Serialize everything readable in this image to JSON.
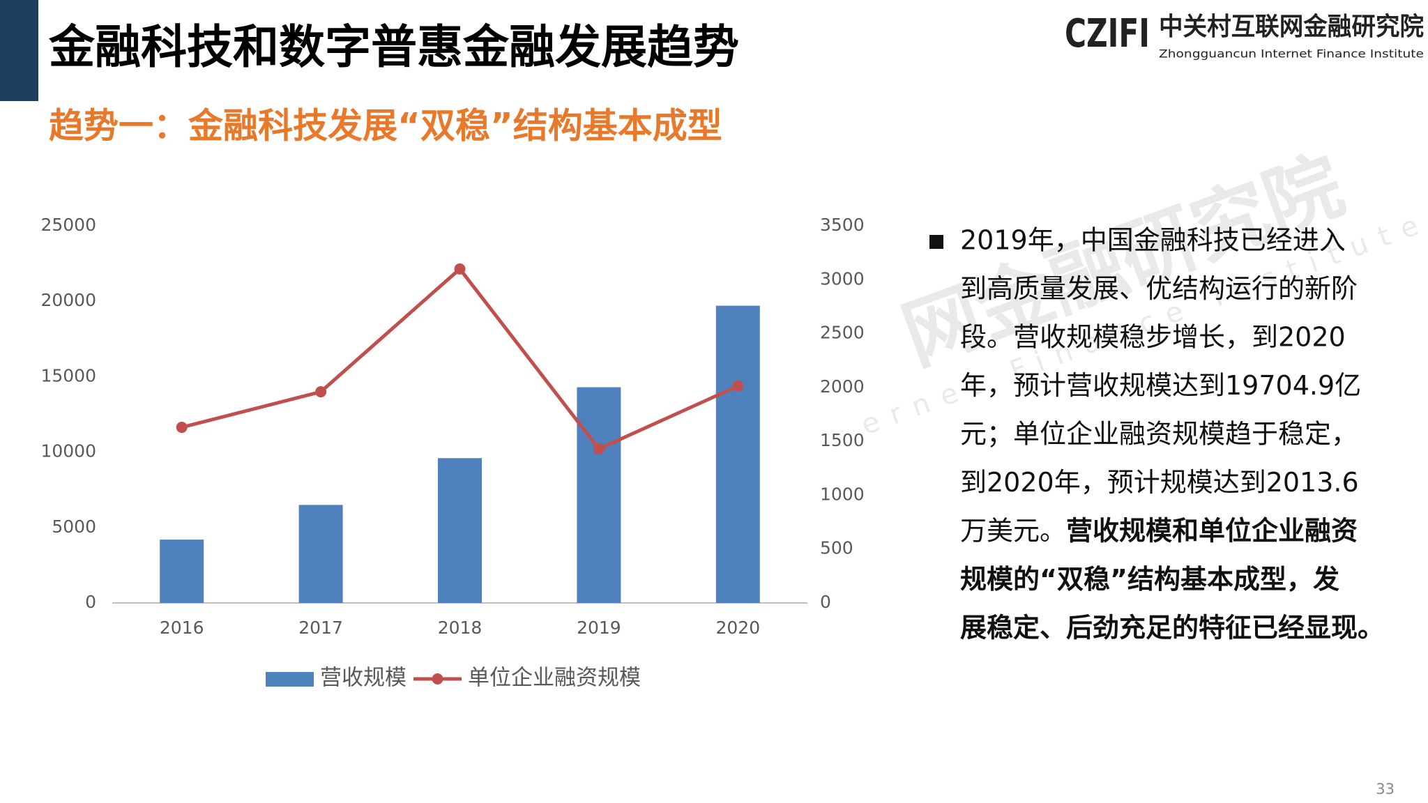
{
  "header": {
    "title": "金融科技和数字普惠金融发展趋势",
    "subtitle": "趋势一：金融科技发展“双稳”结构基本成型",
    "logo_mark": "CZIFI",
    "logo_name": "中关村互联网金融研究院",
    "logo_english": "Zhongguancun Internet Finance Institute"
  },
  "chart_data": {
    "type": "combo",
    "categories": [
      "2016",
      "2017",
      "2018",
      "2019",
      "2020"
    ],
    "series": [
      {
        "name": "营收规模",
        "type": "bar",
        "color": "#4f81bd",
        "values": [
          4200,
          6500,
          9600,
          14300,
          19704.9
        ]
      },
      {
        "name": "单位企业融资规模",
        "type": "line",
        "axis": "y2",
        "color": "#c0504d",
        "values": [
          1630,
          1960,
          3100,
          1430,
          2013.6
        ]
      }
    ],
    "ylim": [
      0,
      25000
    ],
    "yticks": [
      0,
      5000,
      10000,
      15000,
      20000,
      25000
    ],
    "y2lim": [
      0,
      3500
    ],
    "y2ticks": [
      0,
      500,
      1000,
      1500,
      2000,
      2500,
      3000,
      3500
    ],
    "grid": false,
    "legend": "bottom"
  },
  "body": {
    "lines": [
      "2019年，中国金融科技已经进入",
      "到高质量发展、优结构运行的新阶",
      "段。营收规模稳步增长，到2020",
      "年，预计营收规模达到19704.9亿",
      "元；单位企业融资规模趋于稳定，",
      "到2020年，预计规模达到2013.6",
      "万美元。"
    ],
    "emphasis_lines": [
      "营收规模和单位企业融资",
      "规模的“双稳”结构基本成型，发",
      "展稳定、后劲充足的特征已经显现。"
    ]
  },
  "watermark": {
    "name": "网金融研究院",
    "english": "ernet Finance Institute"
  },
  "page_number": 33
}
